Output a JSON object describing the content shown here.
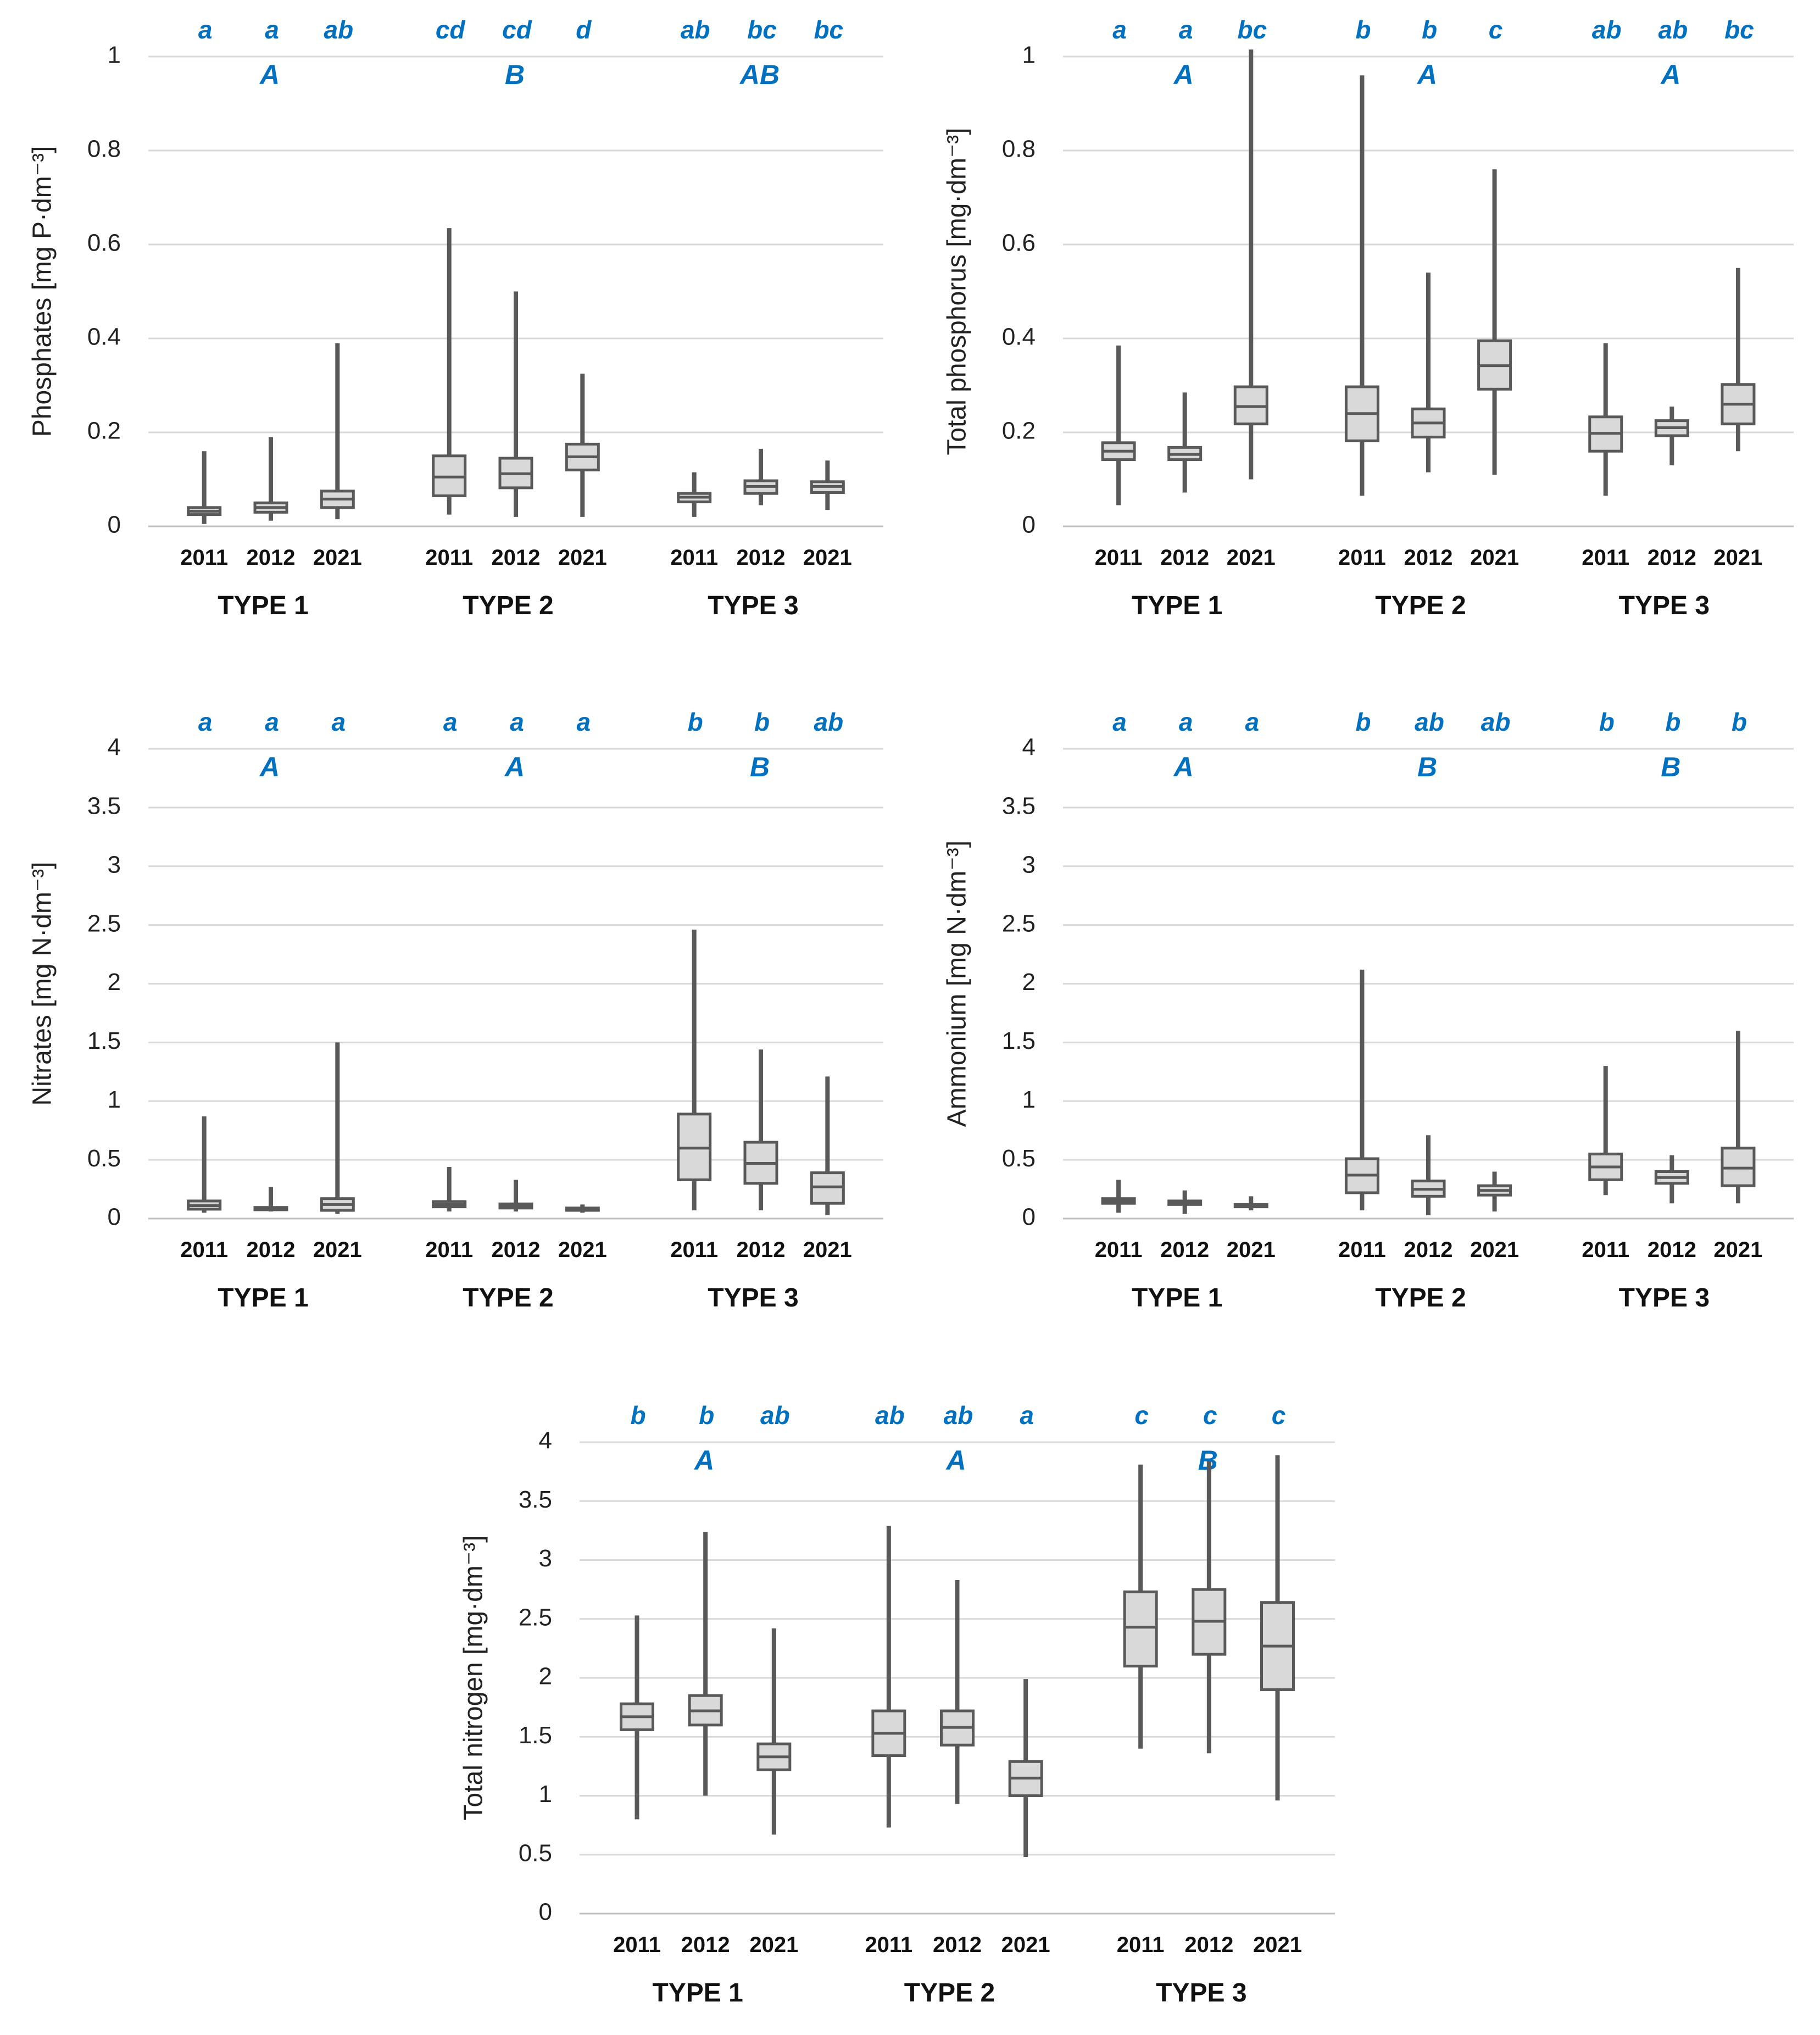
{
  "colors": {
    "box_fill": "#d9d9d9",
    "box_stroke": "#595959",
    "grid": "#d9d9d9",
    "letters": "#0070c0",
    "text": "#222222"
  },
  "chart_data": [
    {
      "id": "phosphates",
      "type": "box",
      "ylabel": "Phosphates [mg P·dm⁻³]",
      "ylim": [
        0,
        1
      ],
      "yticks": [
        0,
        0.2,
        0.4,
        0.6,
        0.8,
        1
      ],
      "ytick_labels": [
        "0",
        "0.2",
        "0.4",
        "0.6",
        "0.8",
        "1"
      ],
      "groups": [
        {
          "name": "TYPE 1",
          "letter": "A",
          "boxes": [
            {
              "year": "2011",
              "min": 0.005,
              "q1": 0.025,
              "median": 0.032,
              "q3": 0.04,
              "max": 0.16,
              "letter": "a"
            },
            {
              "year": "2012",
              "min": 0.012,
              "q1": 0.03,
              "median": 0.04,
              "q3": 0.05,
              "max": 0.19,
              "letter": "a"
            },
            {
              "year": "2021",
              "min": 0.015,
              "q1": 0.04,
              "median": 0.058,
              "q3": 0.075,
              "max": 0.39,
              "letter": "ab"
            }
          ]
        },
        {
          "name": "TYPE 2",
          "letter": "B",
          "boxes": [
            {
              "year": "2011",
              "min": 0.025,
              "q1": 0.065,
              "median": 0.105,
              "q3": 0.15,
              "max": 0.635,
              "letter": "cd"
            },
            {
              "year": "2012",
              "min": 0.02,
              "q1": 0.082,
              "median": 0.112,
              "q3": 0.145,
              "max": 0.5,
              "letter": "cd"
            },
            {
              "year": "2021",
              "min": 0.02,
              "q1": 0.12,
              "median": 0.148,
              "q3": 0.175,
              "max": 0.325,
              "letter": "d"
            }
          ]
        },
        {
          "name": "TYPE 3",
          "letter": "AB",
          "boxes": [
            {
              "year": "2011",
              "min": 0.02,
              "q1": 0.052,
              "median": 0.062,
              "q3": 0.07,
              "max": 0.115,
              "letter": "ab"
            },
            {
              "year": "2012",
              "min": 0.045,
              "q1": 0.07,
              "median": 0.085,
              "q3": 0.097,
              "max": 0.165,
              "letter": "bc"
            },
            {
              "year": "2021",
              "min": 0.035,
              "q1": 0.072,
              "median": 0.085,
              "q3": 0.095,
              "max": 0.14,
              "letter": "bc"
            }
          ]
        }
      ]
    },
    {
      "id": "total-phosphorus",
      "type": "box",
      "ylabel": "Total phosphorus [mg·dm⁻³]",
      "ylim": [
        0,
        1
      ],
      "yticks": [
        0,
        0.2,
        0.4,
        0.6,
        0.8,
        1
      ],
      "ytick_labels": [
        "0",
        "0.2",
        "0.4",
        "0.6",
        "0.8",
        "1"
      ],
      "groups": [
        {
          "name": "TYPE 1",
          "letter": "A",
          "boxes": [
            {
              "year": "2011",
              "min": 0.045,
              "q1": 0.142,
              "median": 0.16,
              "q3": 0.178,
              "max": 0.385,
              "letter": "a"
            },
            {
              "year": "2012",
              "min": 0.072,
              "q1": 0.142,
              "median": 0.153,
              "q3": 0.168,
              "max": 0.285,
              "letter": "a"
            },
            {
              "year": "2021",
              "min": 0.1,
              "q1": 0.218,
              "median": 0.255,
              "q3": 0.297,
              "max": 1.015,
              "letter": "bc"
            }
          ]
        },
        {
          "name": "TYPE 2",
          "letter": "A",
          "boxes": [
            {
              "year": "2011",
              "min": 0.065,
              "q1": 0.182,
              "median": 0.24,
              "q3": 0.297,
              "max": 0.96,
              "letter": "b"
            },
            {
              "year": "2012",
              "min": 0.115,
              "q1": 0.19,
              "median": 0.22,
              "q3": 0.25,
              "max": 0.54,
              "letter": "b"
            },
            {
              "year": "2021",
              "min": 0.11,
              "q1": 0.292,
              "median": 0.342,
              "q3": 0.395,
              "max": 0.76,
              "letter": "c"
            }
          ]
        },
        {
          "name": "TYPE 3",
          "letter": "A",
          "boxes": [
            {
              "year": "2011",
              "min": 0.065,
              "q1": 0.16,
              "median": 0.198,
              "q3": 0.233,
              "max": 0.39,
              "letter": "ab"
            },
            {
              "year": "2012",
              "min": 0.13,
              "q1": 0.193,
              "median": 0.21,
              "q3": 0.225,
              "max": 0.255,
              "letter": "ab"
            },
            {
              "year": "2021",
              "min": 0.16,
              "q1": 0.218,
              "median": 0.26,
              "q3": 0.302,
              "max": 0.55,
              "letter": "bc"
            }
          ]
        }
      ]
    },
    {
      "id": "nitrates",
      "type": "box",
      "ylabel": "Nitrates [mg N·dm⁻³]",
      "ylim": [
        0,
        4
      ],
      "yticks": [
        0,
        0.5,
        1,
        1.5,
        2,
        2.5,
        3,
        3.5,
        4
      ],
      "ytick_labels": [
        "0",
        "0.5",
        "1",
        "1.5",
        "2",
        "2.5",
        "3",
        "3.5",
        "4"
      ],
      "groups": [
        {
          "name": "TYPE 1",
          "letter": "A",
          "boxes": [
            {
              "year": "2011",
              "min": 0.05,
              "q1": 0.08,
              "median": 0.11,
              "q3": 0.15,
              "max": 0.87,
              "letter": "a"
            },
            {
              "year": "2012",
              "min": 0.06,
              "q1": 0.075,
              "median": 0.085,
              "q3": 0.095,
              "max": 0.27,
              "letter": "a"
            },
            {
              "year": "2021",
              "min": 0.04,
              "q1": 0.07,
              "median": 0.12,
              "q3": 0.17,
              "max": 1.5,
              "letter": "a"
            }
          ]
        },
        {
          "name": "TYPE 2",
          "letter": "A",
          "boxes": [
            {
              "year": "2011",
              "min": 0.06,
              "q1": 0.1,
              "median": 0.12,
              "q3": 0.145,
              "max": 0.44,
              "letter": "a"
            },
            {
              "year": "2012",
              "min": 0.06,
              "q1": 0.09,
              "median": 0.105,
              "q3": 0.125,
              "max": 0.33,
              "letter": "a"
            },
            {
              "year": "2021",
              "min": 0.05,
              "q1": 0.07,
              "median": 0.08,
              "q3": 0.09,
              "max": 0.12,
              "letter": "a"
            }
          ]
        },
        {
          "name": "TYPE 3",
          "letter": "B",
          "boxes": [
            {
              "year": "2011",
              "min": 0.07,
              "q1": 0.33,
              "median": 0.6,
              "q3": 0.89,
              "max": 2.46,
              "letter": "b"
            },
            {
              "year": "2012",
              "min": 0.07,
              "q1": 0.3,
              "median": 0.47,
              "q3": 0.65,
              "max": 1.44,
              "letter": "b"
            },
            {
              "year": "2021",
              "min": 0.03,
              "q1": 0.13,
              "median": 0.27,
              "q3": 0.39,
              "max": 1.21,
              "letter": "ab"
            }
          ]
        }
      ]
    },
    {
      "id": "ammonium",
      "type": "box",
      "ylabel": "Ammonium [mg N·dm⁻³]",
      "ylim": [
        0,
        4
      ],
      "yticks": [
        0,
        0.5,
        1,
        1.5,
        2,
        2.5,
        3,
        3.5,
        4
      ],
      "ytick_labels": [
        "0",
        "0.5",
        "1",
        "1.5",
        "2",
        "2.5",
        "3",
        "3.5",
        "4"
      ],
      "groups": [
        {
          "name": "TYPE 1",
          "letter": "A",
          "boxes": [
            {
              "year": "2011",
              "min": 0.05,
              "q1": 0.13,
              "median": 0.15,
              "q3": 0.17,
              "max": 0.33,
              "letter": "a"
            },
            {
              "year": "2012",
              "min": 0.04,
              "q1": 0.12,
              "median": 0.135,
              "q3": 0.15,
              "max": 0.24,
              "letter": "a"
            },
            {
              "year": "2021",
              "min": 0.07,
              "q1": 0.1,
              "median": 0.11,
              "q3": 0.12,
              "max": 0.19,
              "letter": "a"
            }
          ]
        },
        {
          "name": "TYPE 2",
          "letter": "B",
          "boxes": [
            {
              "year": "2011",
              "min": 0.07,
              "q1": 0.22,
              "median": 0.37,
              "q3": 0.51,
              "max": 2.12,
              "letter": "b"
            },
            {
              "year": "2012",
              "min": 0.03,
              "q1": 0.19,
              "median": 0.25,
              "q3": 0.32,
              "max": 0.71,
              "letter": "ab"
            },
            {
              "year": "2021",
              "min": 0.06,
              "q1": 0.2,
              "median": 0.24,
              "q3": 0.28,
              "max": 0.4,
              "letter": "ab"
            }
          ]
        },
        {
          "name": "TYPE 3",
          "letter": "B",
          "boxes": [
            {
              "year": "2011",
              "min": 0.2,
              "q1": 0.33,
              "median": 0.44,
              "q3": 0.55,
              "max": 1.3,
              "letter": "b"
            },
            {
              "year": "2012",
              "min": 0.13,
              "q1": 0.3,
              "median": 0.35,
              "q3": 0.4,
              "max": 0.54,
              "letter": "b"
            },
            {
              "year": "2021",
              "min": 0.13,
              "q1": 0.28,
              "median": 0.43,
              "q3": 0.6,
              "max": 1.6,
              "letter": "b"
            }
          ]
        }
      ]
    },
    {
      "id": "total-nitrogen",
      "type": "box",
      "ylabel": "Total nitrogen [mg·dm⁻³]",
      "ylim": [
        0,
        4
      ],
      "yticks": [
        0,
        0.5,
        1,
        1.5,
        2,
        2.5,
        3,
        3.5,
        4
      ],
      "ytick_labels": [
        "0",
        "0.5",
        "1",
        "1.5",
        "2",
        "2.5",
        "3",
        "3.5",
        "4"
      ],
      "groups": [
        {
          "name": "TYPE 1",
          "letter": "A",
          "boxes": [
            {
              "year": "2011",
              "min": 0.8,
              "q1": 1.56,
              "median": 1.67,
              "q3": 1.78,
              "max": 2.53,
              "letter": "b"
            },
            {
              "year": "2012",
              "min": 1.0,
              "q1": 1.6,
              "median": 1.72,
              "q3": 1.85,
              "max": 3.24,
              "letter": "b"
            },
            {
              "year": "2021",
              "min": 0.67,
              "q1": 1.22,
              "median": 1.33,
              "q3": 1.44,
              "max": 2.42,
              "letter": "ab"
            }
          ]
        },
        {
          "name": "TYPE 2",
          "letter": "A",
          "boxes": [
            {
              "year": "2011",
              "min": 0.73,
              "q1": 1.34,
              "median": 1.53,
              "q3": 1.72,
              "max": 3.29,
              "letter": "ab"
            },
            {
              "year": "2012",
              "min": 0.93,
              "q1": 1.43,
              "median": 1.58,
              "q3": 1.72,
              "max": 2.83,
              "letter": "ab"
            },
            {
              "year": "2021",
              "min": 0.48,
              "q1": 1.0,
              "median": 1.15,
              "q3": 1.29,
              "max": 1.99,
              "letter": "a"
            }
          ]
        },
        {
          "name": "TYPE 3",
          "letter": "B",
          "boxes": [
            {
              "year": "2011",
              "min": 1.4,
              "q1": 2.1,
              "median": 2.43,
              "q3": 2.73,
              "max": 3.81,
              "letter": "c"
            },
            {
              "year": "2012",
              "min": 1.36,
              "q1": 2.2,
              "median": 2.48,
              "q3": 2.75,
              "max": 3.84,
              "letter": "c"
            },
            {
              "year": "2021",
              "min": 0.96,
              "q1": 1.9,
              "median": 2.27,
              "q3": 2.64,
              "max": 3.89,
              "letter": "c"
            }
          ]
        }
      ]
    }
  ]
}
